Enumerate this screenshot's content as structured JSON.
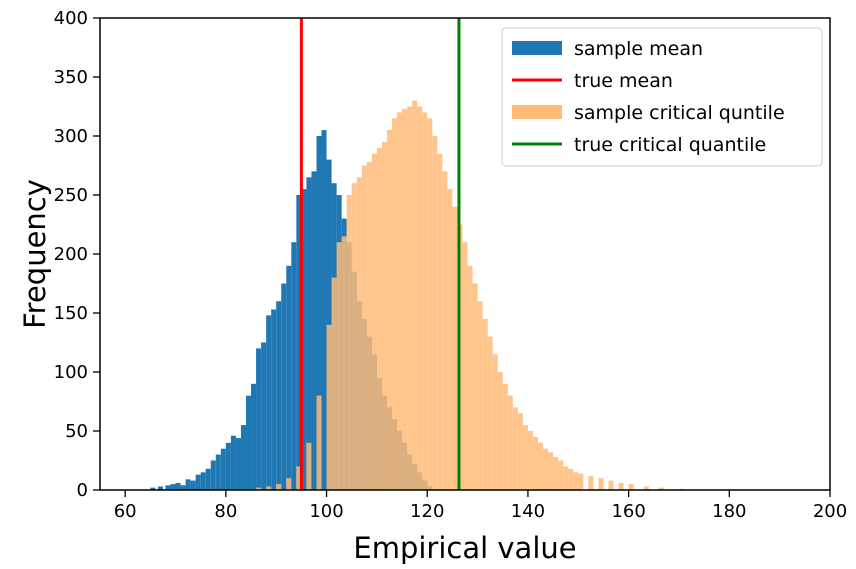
{
  "chart_data": {
    "type": "histogram",
    "xlabel": "Empirical value",
    "ylabel": "Frequency",
    "xlim": [
      55,
      200
    ],
    "ylim": [
      0,
      400
    ],
    "x_ticks": [
      60,
      80,
      100,
      120,
      140,
      160,
      180,
      200
    ],
    "y_ticks": [
      0,
      50,
      100,
      150,
      200,
      250,
      300,
      350,
      400
    ],
    "grid": false,
    "legend_position": "top-right",
    "series": [
      {
        "name": "sample mean",
        "kind": "hist",
        "color": "#1f77b4",
        "alpha": 1.0,
        "bins": [
          [
            65.0,
            2
          ],
          [
            66.5,
            3
          ],
          [
            68.0,
            4
          ],
          [
            69.0,
            5
          ],
          [
            70.0,
            6
          ],
          [
            71.0,
            4
          ],
          [
            72.0,
            9
          ],
          [
            73.0,
            8
          ],
          [
            74.0,
            13
          ],
          [
            75.0,
            15
          ],
          [
            76.0,
            18
          ],
          [
            77.0,
            25
          ],
          [
            78.0,
            30
          ],
          [
            79.0,
            35
          ],
          [
            80.0,
            40
          ],
          [
            81.0,
            46
          ],
          [
            82.0,
            44
          ],
          [
            83.0,
            55
          ],
          [
            84.0,
            80
          ],
          [
            85.0,
            90
          ],
          [
            86.0,
            120
          ],
          [
            87.0,
            125
          ],
          [
            88.0,
            148
          ],
          [
            89.0,
            153
          ],
          [
            90.0,
            160
          ],
          [
            91.0,
            175
          ],
          [
            92.0,
            190
          ],
          [
            93.0,
            210
          ],
          [
            94.0,
            250
          ],
          [
            95.0,
            255
          ],
          [
            96.0,
            265
          ],
          [
            97.0,
            270
          ],
          [
            98.0,
            300
          ],
          [
            99.0,
            305
          ],
          [
            100.0,
            280
          ],
          [
            101.0,
            260
          ],
          [
            102.0,
            250
          ],
          [
            103.0,
            230
          ],
          [
            104.0,
            210
          ],
          [
            105.0,
            185
          ],
          [
            106.0,
            160
          ],
          [
            107.0,
            145
          ],
          [
            108.0,
            130
          ],
          [
            109.0,
            115
          ],
          [
            110.0,
            95
          ],
          [
            111.0,
            80
          ],
          [
            112.0,
            70
          ],
          [
            113.0,
            60
          ],
          [
            114.0,
            50
          ],
          [
            115.0,
            40
          ],
          [
            116.0,
            30
          ],
          [
            117.0,
            22
          ],
          [
            118.0,
            15
          ],
          [
            119.0,
            8
          ],
          [
            120.0,
            3
          ]
        ],
        "bin_width": 1.0
      },
      {
        "name": "sample critical quntile",
        "kind": "hist",
        "color": "#ffbb78",
        "alpha": 0.85,
        "bins": [
          [
            86.0,
            2
          ],
          [
            88.0,
            3
          ],
          [
            90.0,
            5
          ],
          [
            92.0,
            10
          ],
          [
            94.0,
            20
          ],
          [
            96.0,
            40
          ],
          [
            98.0,
            80
          ],
          [
            100.0,
            140
          ],
          [
            101.0,
            180
          ],
          [
            102.0,
            210
          ],
          [
            103.0,
            215
          ],
          [
            104.0,
            250
          ],
          [
            105.0,
            260
          ],
          [
            106.0,
            265
          ],
          [
            107.0,
            275
          ],
          [
            108.0,
            278
          ],
          [
            109.0,
            285
          ],
          [
            110.0,
            290
          ],
          [
            111.0,
            295
          ],
          [
            112.0,
            305
          ],
          [
            113.0,
            315
          ],
          [
            114.0,
            320
          ],
          [
            115.0,
            323
          ],
          [
            116.0,
            325
          ],
          [
            117.0,
            330
          ],
          [
            118.0,
            325
          ],
          [
            119.0,
            320
          ],
          [
            120.0,
            315
          ],
          [
            121.0,
            300
          ],
          [
            122.0,
            285
          ],
          [
            123.0,
            270
          ],
          [
            124.0,
            255
          ],
          [
            125.0,
            240
          ],
          [
            126.0,
            225
          ],
          [
            127.0,
            210
          ],
          [
            128.0,
            190
          ],
          [
            129.0,
            175
          ],
          [
            130.0,
            160
          ],
          [
            131.0,
            145
          ],
          [
            132.0,
            130
          ],
          [
            133.0,
            115
          ],
          [
            134.0,
            100
          ],
          [
            135.0,
            90
          ],
          [
            136.0,
            80
          ],
          [
            137.0,
            70
          ],
          [
            138.0,
            65
          ],
          [
            139.0,
            55
          ],
          [
            140.0,
            50
          ],
          [
            141.0,
            45
          ],
          [
            142.0,
            40
          ],
          [
            143.0,
            35
          ],
          [
            144.0,
            32
          ],
          [
            145.0,
            28
          ],
          [
            146.0,
            25
          ],
          [
            147.0,
            20
          ],
          [
            148.0,
            18
          ],
          [
            149.0,
            15
          ],
          [
            150.0,
            14
          ],
          [
            152.0,
            12
          ],
          [
            154.0,
            10
          ],
          [
            156.0,
            8
          ],
          [
            158.0,
            6
          ],
          [
            160.0,
            5
          ],
          [
            163.0,
            3
          ],
          [
            166.0,
            2
          ],
          [
            170.0,
            1
          ]
        ],
        "bin_width": 1.0
      }
    ],
    "vlines": [
      {
        "name": "true mean",
        "x": 95.0,
        "color": "#ff0000"
      },
      {
        "name": "true critical quantile",
        "x": 126.3,
        "color": "#008000"
      }
    ],
    "legend": [
      {
        "label": "sample mean",
        "kind": "patch",
        "color": "#1f77b4"
      },
      {
        "label": "true mean",
        "kind": "line",
        "color": "#ff0000"
      },
      {
        "label": "sample critical quntile",
        "kind": "patch",
        "color": "#ffbb78"
      },
      {
        "label": "true critical quantile",
        "kind": "line",
        "color": "#008000"
      }
    ]
  }
}
